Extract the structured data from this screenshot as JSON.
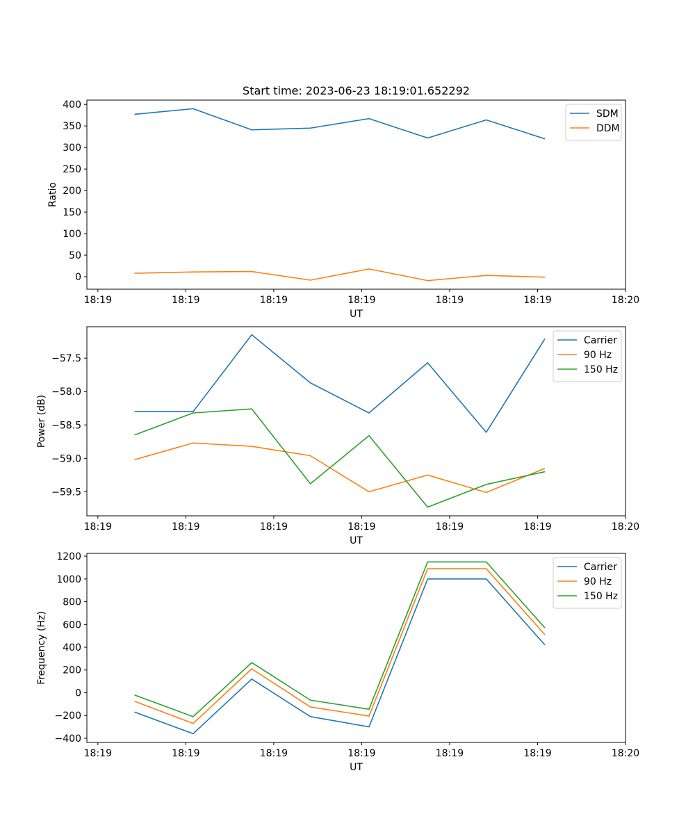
{
  "chart_data": [
    {
      "type": "line",
      "title": "Start time: 2023-06-23 18:19:01.652292",
      "xlabel": "UT",
      "ylabel": "Ratio",
      "x": [
        1,
        2,
        3,
        4,
        5,
        6,
        7,
        8
      ],
      "xlim": [
        0.1875,
        9.375
      ],
      "x_ticks": [
        {
          "x": 0.375,
          "label": "18:19"
        },
        {
          "x": 1.875,
          "label": "18:19"
        },
        {
          "x": 3.375,
          "label": "18:19"
        },
        {
          "x": 4.875,
          "label": "18:19"
        },
        {
          "x": 6.375,
          "label": "18:19"
        },
        {
          "x": 7.875,
          "label": "18:19"
        },
        {
          "x": 9.375,
          "label": "18:20"
        }
      ],
      "ylim": [
        -29,
        410
      ],
      "y_ticks": [
        0,
        50,
        100,
        150,
        200,
        250,
        300,
        350,
        400
      ],
      "y_tick_labels": [
        "0",
        "50",
        "100",
        "150",
        "200",
        "250",
        "300",
        "350",
        "400"
      ],
      "legend_position": "top-right",
      "series": [
        {
          "name": "SDM",
          "color": "#1f77b4",
          "values": [
            377,
            390,
            341,
            345,
            367,
            322,
            364,
            320
          ]
        },
        {
          "name": "DDM",
          "color": "#ff7f0e",
          "values": [
            8,
            11,
            12,
            -8,
            18,
            -9,
            3,
            -1
          ]
        }
      ]
    },
    {
      "type": "line",
      "xlabel": "UT",
      "ylabel": "Power (dB)",
      "x": [
        1,
        2,
        3,
        4,
        5,
        6,
        7,
        8
      ],
      "xlim": [
        0.1875,
        9.375
      ],
      "x_ticks": [
        {
          "x": 0.375,
          "label": "18:19"
        },
        {
          "x": 1.875,
          "label": "18:19"
        },
        {
          "x": 3.375,
          "label": "18:19"
        },
        {
          "x": 4.875,
          "label": "18:19"
        },
        {
          "x": 6.375,
          "label": "18:19"
        },
        {
          "x": 7.875,
          "label": "18:19"
        },
        {
          "x": 9.375,
          "label": "18:20"
        }
      ],
      "ylim": [
        -59.86,
        -57.03
      ],
      "y_ticks": [
        -59.5,
        -59.0,
        -58.5,
        -58.0,
        -57.5
      ],
      "y_tick_labels": [
        "−59.5",
        "−59.0",
        "−58.5",
        "−58.0",
        "−57.5"
      ],
      "legend_position": "top-right",
      "series": [
        {
          "name": "Carrier",
          "color": "#1f77b4",
          "values": [
            -58.3,
            -58.3,
            -57.15,
            -57.87,
            -58.32,
            -57.57,
            -58.61,
            -57.21
          ]
        },
        {
          "name": "90 Hz",
          "color": "#ff7f0e",
          "values": [
            -59.02,
            -58.77,
            -58.82,
            -58.96,
            -59.5,
            -59.25,
            -59.51,
            -59.15
          ]
        },
        {
          "name": "150 Hz",
          "color": "#2ca02c",
          "values": [
            -58.65,
            -58.32,
            -58.26,
            -59.38,
            -58.66,
            -59.73,
            -59.39,
            -59.2
          ]
        }
      ]
    },
    {
      "type": "line",
      "xlabel": "UT",
      "ylabel": "Frequency (Hz)",
      "x": [
        1,
        2,
        3,
        4,
        5,
        6,
        7,
        8
      ],
      "xlim": [
        0.1875,
        9.375
      ],
      "x_ticks": [
        {
          "x": 0.375,
          "label": "18:19"
        },
        {
          "x": 1.875,
          "label": "18:19"
        },
        {
          "x": 3.375,
          "label": "18:19"
        },
        {
          "x": 4.875,
          "label": "18:19"
        },
        {
          "x": 6.375,
          "label": "18:19"
        },
        {
          "x": 7.875,
          "label": "18:19"
        },
        {
          "x": 9.375,
          "label": "18:20"
        }
      ],
      "ylim": [
        -437,
        1225
      ],
      "y_ticks": [
        -400,
        -200,
        0,
        200,
        400,
        600,
        800,
        1000,
        1200
      ],
      "y_tick_labels": [
        "−400",
        "−200",
        "0",
        "200",
        "400",
        "600",
        "800",
        "1000",
        "1200"
      ],
      "legend_position": "top-right",
      "series": [
        {
          "name": "Carrier",
          "color": "#1f77b4",
          "values": [
            -170,
            -360,
            120,
            -210,
            -300,
            1000,
            1000,
            420
          ]
        },
        {
          "name": "90 Hz",
          "color": "#ff7f0e",
          "values": [
            -75,
            -270,
            210,
            -125,
            -205,
            1090,
            1090,
            510
          ]
        },
        {
          "name": "150 Hz",
          "color": "#2ca02c",
          "values": [
            -20,
            -210,
            265,
            -65,
            -145,
            1150,
            1150,
            570
          ]
        }
      ]
    }
  ]
}
